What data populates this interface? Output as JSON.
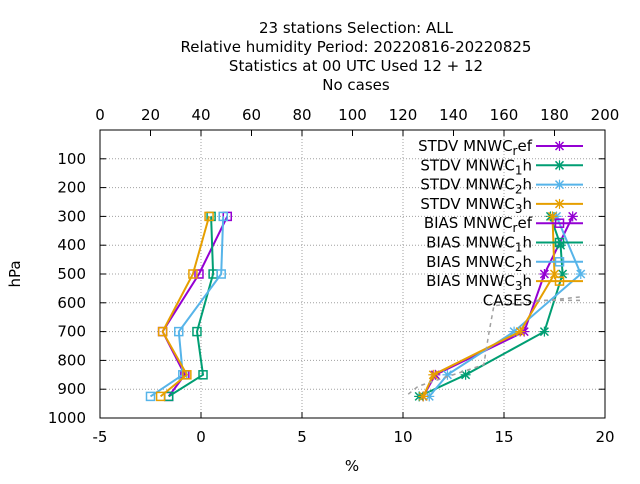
{
  "chart_data": {
    "type": "line",
    "title_lines": [
      "23 stations Selection: ALL",
      "Relative humidity  Period: 20220816-20220825",
      "Statistics at 00 UTC  Used  12 + 12",
      "No cases"
    ],
    "xlabel": "%",
    "ylabel": "hPa",
    "xlim": [
      -5,
      20
    ],
    "x_ticks": [
      "-5",
      "0",
      "5",
      "10",
      "15",
      "20"
    ],
    "ylim": [
      1000,
      0
    ],
    "y_ticks": [
      "100",
      "200",
      "300",
      "400",
      "500",
      "600",
      "700",
      "800",
      "900",
      "1000"
    ],
    "x2lim": [
      0,
      200
    ],
    "x2_ticks": [
      "0",
      "20",
      "40",
      "60",
      "80",
      "100",
      "120",
      "140",
      "160",
      "180",
      "200"
    ],
    "grid": true,
    "legend_position": "top-right",
    "series": [
      {
        "name": "STDV MNWC_ref",
        "legend": {
          "base": "STDV MNWC",
          "sub": "r",
          "rest": "ef"
        },
        "color": "#9400d3",
        "marker": "x",
        "dash": false,
        "points": [
          [
            18.4,
            300
          ],
          [
            16.0,
            700
          ],
          [
            11.6,
            850
          ],
          [
            11.0,
            925
          ],
          [
            17.0,
            500
          ]
        ],
        "order": [
          [
            17.0,
            500
          ],
          [
            18.4,
            300
          ]
        ]
      },
      {
        "name": "STDV MNWC_1h",
        "legend": {
          "base": "STDV MNWC",
          "sub": "1",
          "rest": "h"
        },
        "color": "#009e73",
        "marker": "x",
        "dash": false,
        "points": []
      },
      {
        "name": "STDV MNWC_2h",
        "legend": {
          "base": "STDV MNWC",
          "sub": "2",
          "rest": "h"
        },
        "color": "#56b4e9",
        "marker": "x",
        "dash": false,
        "points": []
      },
      {
        "name": "STDV MNWC_3h",
        "legend": {
          "base": "STDV MNWC",
          "sub": "3",
          "rest": "h"
        },
        "color": "#e69f00",
        "marker": "x",
        "dash": false,
        "points": []
      },
      {
        "name": "BIAS MNWC_ref",
        "legend": {
          "base": "BIAS MNWC",
          "sub": "r",
          "rest": "ef"
        },
        "color": "#9400d3",
        "marker": "square",
        "dash": false,
        "points": []
      },
      {
        "name": "BIAS MNWC_1h",
        "legend": {
          "base": "BIAS MNWC",
          "sub": "1",
          "rest": "h"
        },
        "color": "#009e73",
        "marker": "square",
        "dash": false,
        "points": []
      },
      {
        "name": "BIAS MNWC_2h",
        "legend": {
          "base": "BIAS MNWC",
          "sub": "2",
          "rest": "h"
        },
        "color": "#56b4e9",
        "marker": "square",
        "dash": false,
        "points": []
      },
      {
        "name": "BIAS MNWC_3h",
        "legend": {
          "base": "BIAS MNWC",
          "sub": "3",
          "rest": "h"
        },
        "color": "#e69f00",
        "marker": "square",
        "dash": false,
        "points": []
      },
      {
        "name": "CASES",
        "legend": {
          "base": "CASES",
          "sub": "",
          "rest": ""
        },
        "color": "#a0a0a0",
        "marker": "none",
        "dash": true,
        "axis": "x2",
        "points": []
      }
    ]
  }
}
